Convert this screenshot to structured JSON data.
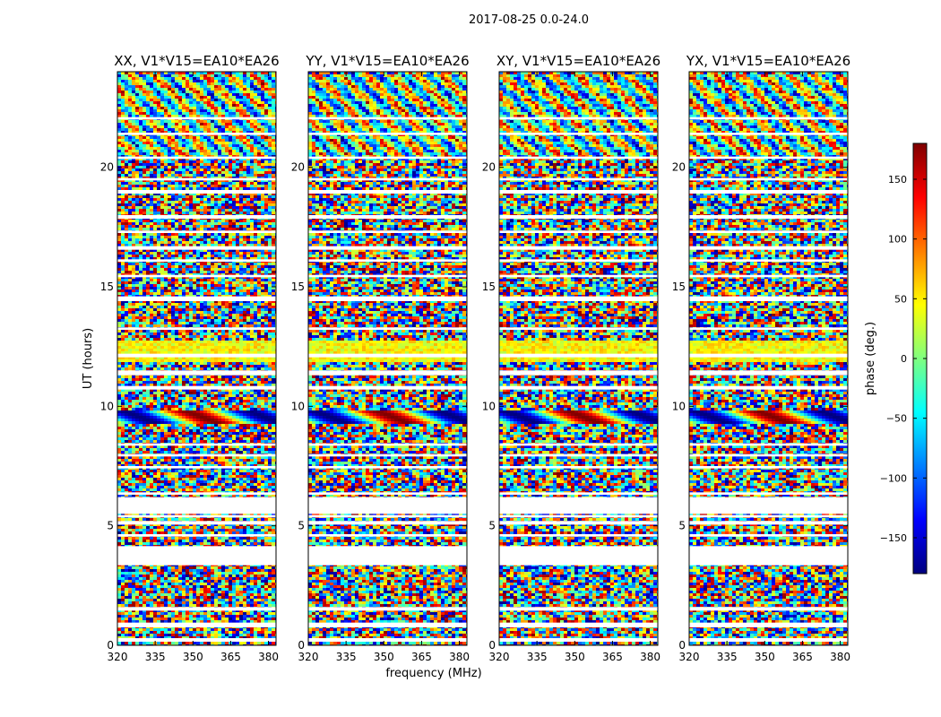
{
  "figure_title": "2017-08-25 0.0-24.0",
  "chart_data": {
    "type": "heatmap",
    "title": "2017-08-25 0.0-24.0",
    "xlabel": "frequency (MHz)",
    "ylabel": "UT (hours)",
    "xlim": [
      320,
      383
    ],
    "ylim": [
      0,
      24
    ],
    "x_ticks": [
      320,
      335,
      350,
      365,
      380
    ],
    "y_ticks": [
      0,
      5,
      10,
      15,
      20
    ],
    "panels": [
      {
        "title": "XX, V1*V15=EA10*EA26",
        "polarization": "XX"
      },
      {
        "title": "YY, V1*V15=EA10*EA26",
        "polarization": "YY"
      },
      {
        "title": "XY, V1*V15=EA10*EA26",
        "polarization": "XY"
      },
      {
        "title": "YX, V1*V15=EA10*EA26",
        "polarization": "YX"
      }
    ],
    "colorbar": {
      "label": "phase (deg.)",
      "range": [
        -180,
        180
      ],
      "ticks": [
        -150,
        -100,
        -50,
        0,
        50,
        100,
        150
      ],
      "tick_labels": [
        "−150",
        "−100",
        "−50",
        "0",
        "50",
        "100",
        "150"
      ],
      "colormap": [
        "#00007f",
        "#0000ff",
        "#007fff",
        "#00ffff",
        "#7fff7f",
        "#ffff00",
        "#ff7f00",
        "#ff0000",
        "#7f0000"
      ]
    },
    "flagged_bands_hours": [
      [
        0.15,
        0.3
      ],
      [
        0.75,
        0.95
      ],
      [
        1.45,
        1.6
      ],
      [
        3.35,
        3.45
      ],
      [
        4.05,
        4.15
      ],
      [
        4.55,
        4.65
      ],
      [
        5.05,
        5.2
      ],
      [
        5.35,
        5.45
      ],
      [
        5.55,
        6.0
      ],
      [
        6.3,
        6.4
      ],
      [
        7.4,
        7.5
      ],
      [
        7.9,
        8.0
      ],
      [
        8.35,
        8.45
      ],
      [
        10.7,
        10.85
      ],
      [
        11.3,
        11.5
      ],
      [
        12.05,
        12.2
      ],
      [
        13.2,
        13.3
      ],
      [
        14.4,
        14.6
      ],
      [
        15.4,
        15.5
      ],
      [
        16.05,
        16.15
      ],
      [
        16.55,
        16.7
      ],
      [
        17.25,
        17.35
      ],
      [
        17.85,
        18.0
      ],
      [
        18.9,
        19.05
      ],
      [
        19.45,
        19.55
      ],
      [
        20.35,
        20.45
      ],
      [
        21.35,
        21.45
      ],
      [
        22.0,
        22.1
      ]
    ],
    "empty_band_hours": [
      3.45,
      4.05
    ],
    "band_note_hours": [
      5.5,
      6.2
    ]
  }
}
